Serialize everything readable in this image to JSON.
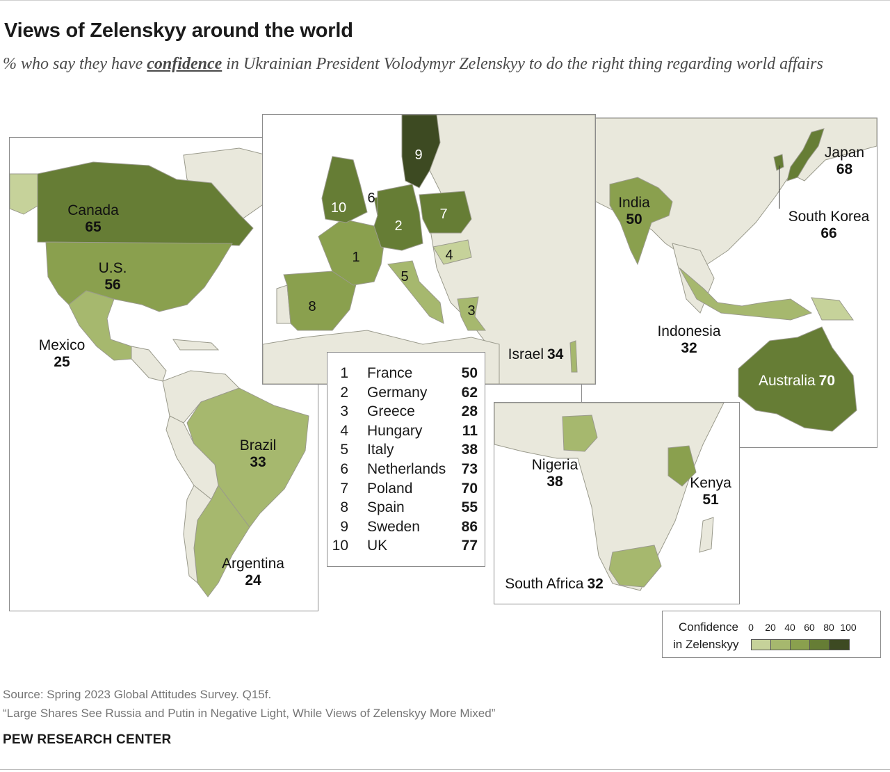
{
  "title": "Views of Zelenskyy around the world",
  "subtitle": {
    "pre": "% who say they have ",
    "keyword": "confidence",
    "post": " in Ukrainian President Volodymyr Zelenskyy to do the right thing regarding world affairs"
  },
  "colors": {
    "background_land": "#e9e8dc",
    "border": "#9a9a8c",
    "scale": [
      "#c6d29a",
      "#a6b86e",
      "#8aa04e",
      "#667d35",
      "#3d4a22"
    ]
  },
  "scale": {
    "min": 0,
    "max": 100,
    "bins": [
      0,
      20,
      40,
      60,
      80,
      100
    ]
  },
  "countries": [
    {
      "name": "Canada",
      "value": 65
    },
    {
      "name": "U.S.",
      "value": 56
    },
    {
      "name": "Mexico",
      "value": 25
    },
    {
      "name": "Brazil",
      "value": 33
    },
    {
      "name": "Argentina",
      "value": 24
    },
    {
      "name": "Israel",
      "value": 34
    },
    {
      "name": "Nigeria",
      "value": 38
    },
    {
      "name": "Kenya",
      "value": 51
    },
    {
      "name": "South Africa",
      "value": 32
    },
    {
      "name": "India",
      "value": 50
    },
    {
      "name": "Indonesia",
      "value": 32
    },
    {
      "name": "Japan",
      "value": 68
    },
    {
      "name": "South Korea",
      "value": 66
    },
    {
      "name": "Australia",
      "value": 70
    }
  ],
  "europe_key": [
    {
      "n": "1",
      "name": "France",
      "value": 50
    },
    {
      "n": "2",
      "name": "Germany",
      "value": 62
    },
    {
      "n": "3",
      "name": "Greece",
      "value": 28
    },
    {
      "n": "4",
      "name": "Hungary",
      "value": 11
    },
    {
      "n": "5",
      "name": "Italy",
      "value": 38
    },
    {
      "n": "6",
      "name": "Netherlands",
      "value": 73
    },
    {
      "n": "7",
      "name": "Poland",
      "value": 70
    },
    {
      "n": "8",
      "name": "Spain",
      "value": 55
    },
    {
      "n": "9",
      "name": "Sweden",
      "value": 86
    },
    {
      "n": "10",
      "name": "UK",
      "value": 77
    }
  ],
  "legend": {
    "line1": "Confidence",
    "line2": "in Zelenskyy",
    "ticks": [
      "0",
      "20",
      "40",
      "60",
      "80",
      "100"
    ]
  },
  "source": "Source: Spring 2023 Global Attitudes Survey. Q15f.",
  "report": "“Large Shares See Russia and Putin in Negative Light, While Views of Zelenskyy More Mixed”",
  "footer": "PEW RESEARCH CENTER"
}
